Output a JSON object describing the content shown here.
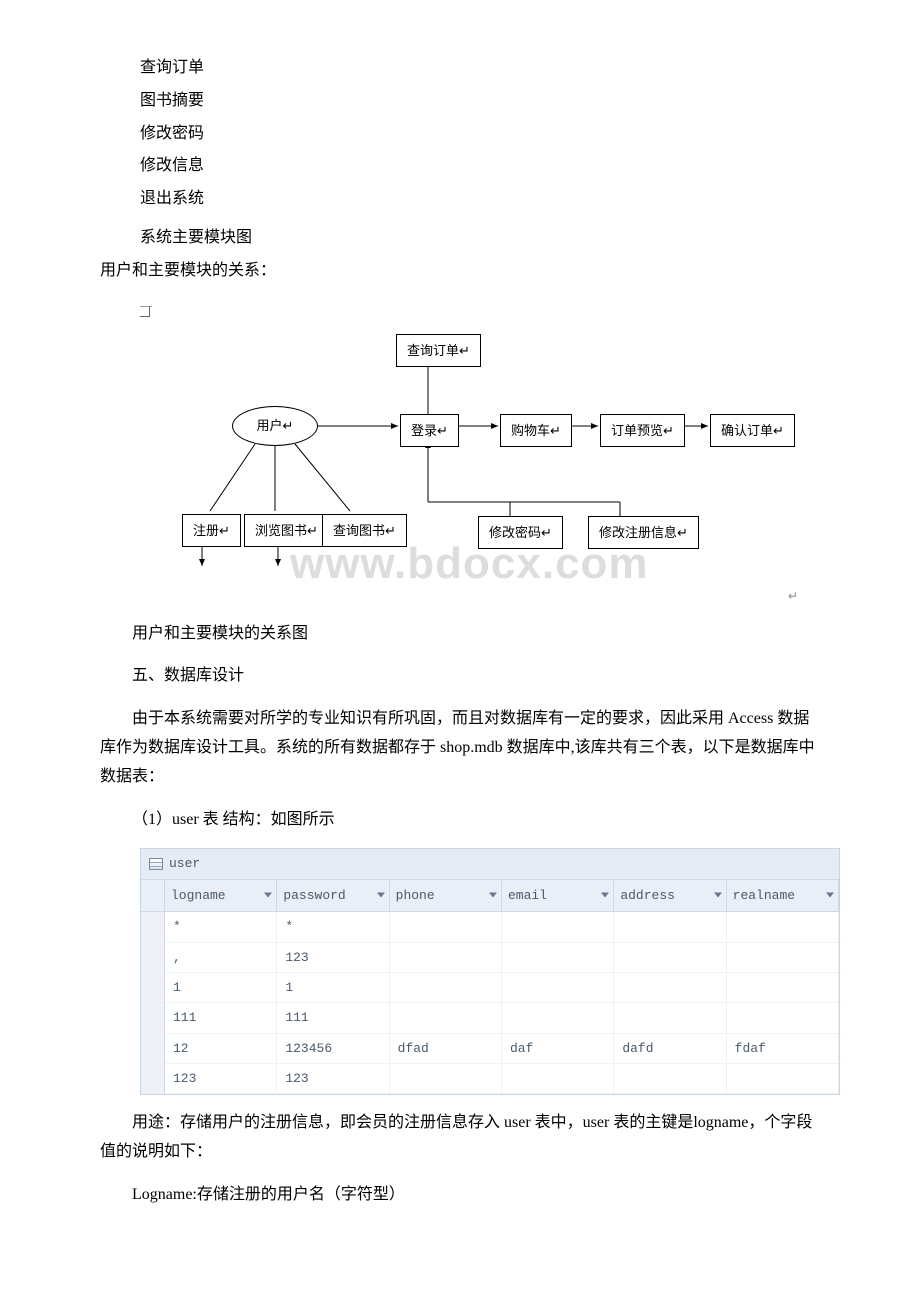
{
  "list_items": [
    "查询订单",
    "图书摘要",
    "修改密码",
    "修改信息",
    "退出系统"
  ],
  "section_titles": {
    "module_diagram": "系统主要模块图",
    "relation_title": "用户和主要模块的关系：",
    "relation_caption": "用户和主要模块的关系图",
    "db_design": "五、数据库设计",
    "user_table_caption": "（1）user 表 结构：如图所示"
  },
  "paragraphs": {
    "db_intro": "由于本系统需要对所学的专业知识有所巩固，而且对数据库有一定的要求，因此采用 Access 数据库作为数据库设计工具。系统的所有数据都存于 shop.mdb 数据库中,该库共有三个表，以下是数据库中数据表：",
    "user_purpose": "用途：存储用户的注册信息，即会员的注册信息存入 user 表中，user 表的主键是logname，个字段值的说明如下：",
    "logname_desc": "Logname:存储注册的用户名（字符型）"
  },
  "diagram": {
    "watermark": "www.bdocx.com",
    "nodes": {
      "user": "用户↵",
      "query_order": "查询订单↵",
      "login": "登录↵",
      "cart": "购物车↵",
      "order_preview": "订单预览↵",
      "confirm_order": "确认订单↵",
      "register": "注册↵",
      "browse_books": "浏览图书↵",
      "query_books": "查询图书↵",
      "change_pwd": "修改密码↵",
      "change_info": "修改注册信息↵"
    }
  },
  "db_table": {
    "title": "user",
    "columns": [
      "logname",
      "password",
      "phone",
      "email",
      "address",
      "realname"
    ],
    "rows": [
      [
        "*",
        "*",
        "",
        "",
        "",
        ""
      ],
      [
        ",",
        "123",
        "",
        "",
        "",
        ""
      ],
      [
        "1",
        "1",
        "",
        "",
        "",
        ""
      ],
      [
        "111",
        "111",
        "",
        "",
        "",
        ""
      ],
      [
        "12",
        "123456",
        "dfad",
        "daf",
        "dafd",
        "fdaf"
      ],
      [
        "123",
        "123",
        "",
        "",
        "",
        ""
      ]
    ]
  }
}
